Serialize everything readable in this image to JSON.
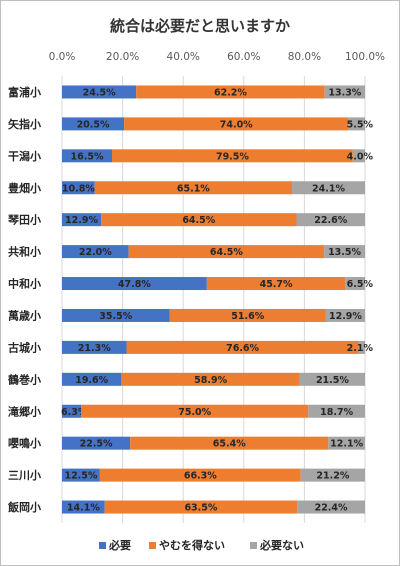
{
  "chart_data": {
    "type": "bar",
    "orientation": "horizontal",
    "stacked": true,
    "title": "統合は必要だと思いますか",
    "xlim": [
      0,
      100
    ],
    "x_ticks": [
      "0.0%",
      "20.0%",
      "40.0%",
      "60.0%",
      "80.0%",
      "100.0%"
    ],
    "legend_position": "bottom",
    "grid": true,
    "categories": [
      "富浦小",
      "矢指小",
      "干潟小",
      "豊畑小",
      "琴田小",
      "共和小",
      "中和小",
      "萬歳小",
      "古城小",
      "鶴巻小",
      "滝郷小",
      "嚶鳴小",
      "三川小",
      "飯岡小"
    ],
    "series": [
      {
        "name": "必要",
        "color": "#4472c4",
        "values": [
          24.5,
          20.5,
          16.5,
          10.8,
          12.9,
          22.0,
          47.8,
          35.5,
          21.3,
          19.6,
          6.3,
          22.5,
          12.5,
          14.1
        ]
      },
      {
        "name": "やむを得ない",
        "color": "#ed7d31",
        "values": [
          62.2,
          74.0,
          79.5,
          65.1,
          64.5,
          64.5,
          45.7,
          51.6,
          76.6,
          58.9,
          75.0,
          65.4,
          66.3,
          63.5
        ]
      },
      {
        "name": "必要ない",
        "color": "#a5a5a5",
        "values": [
          13.3,
          5.5,
          4.0,
          24.1,
          22.6,
          13.5,
          6.5,
          12.9,
          2.1,
          21.5,
          18.7,
          12.1,
          21.2,
          22.4
        ]
      }
    ]
  }
}
